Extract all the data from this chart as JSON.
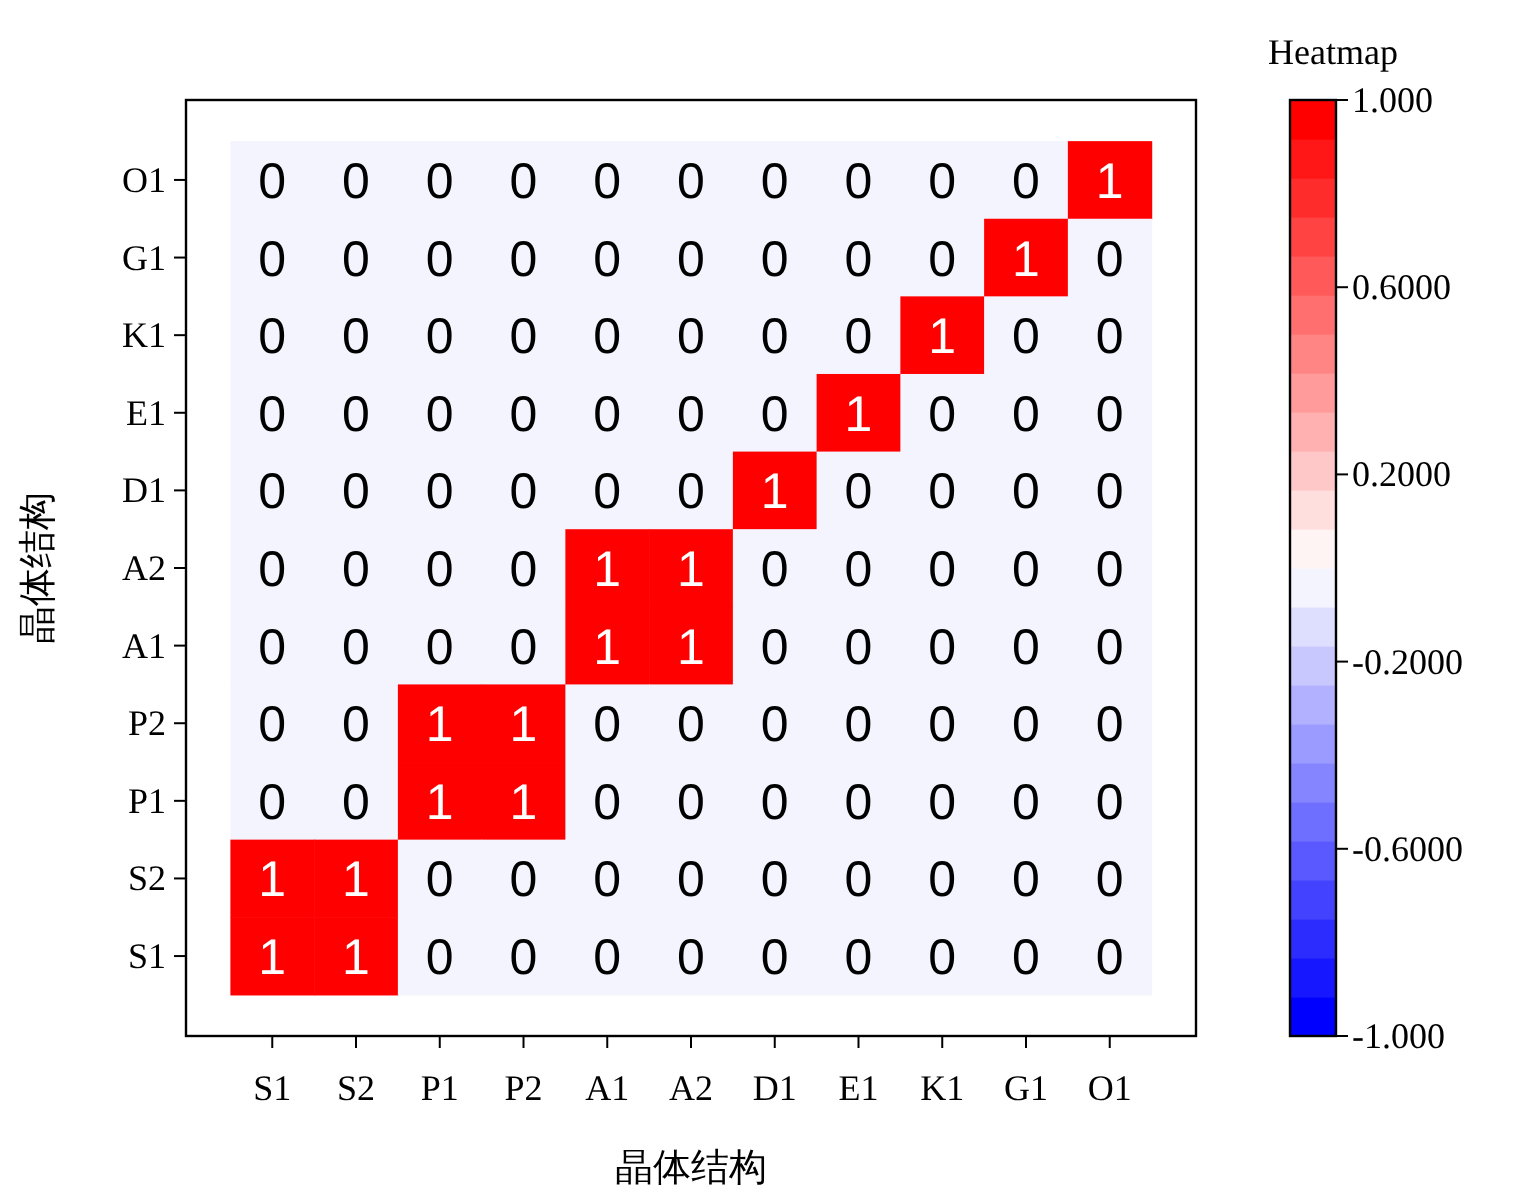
{
  "chart_data": {
    "type": "heatmap",
    "xlabel": "晶体结构",
    "ylabel": "晶体结构",
    "clabel": "Heatmap",
    "categories": [
      "S1",
      "S2",
      "P1",
      "P2",
      "A1",
      "A2",
      "D1",
      "E1",
      "K1",
      "G1",
      "O1"
    ],
    "y_categories": [
      "O1",
      "G1",
      "K1",
      "E1",
      "D1",
      "A2",
      "A1",
      "P2",
      "P1",
      "S2",
      "S1"
    ],
    "cells": [
      [
        0,
        0,
        0,
        0,
        0,
        0,
        0,
        0,
        0,
        0,
        1
      ],
      [
        0,
        0,
        0,
        0,
        0,
        0,
        0,
        0,
        0,
        1,
        0
      ],
      [
        0,
        0,
        0,
        0,
        0,
        0,
        0,
        0,
        1,
        0,
        0
      ],
      [
        0,
        0,
        0,
        0,
        0,
        0,
        0,
        1,
        0,
        0,
        0
      ],
      [
        0,
        0,
        0,
        0,
        0,
        0,
        1,
        0,
        0,
        0,
        0
      ],
      [
        0,
        0,
        0,
        0,
        1,
        1,
        0,
        0,
        0,
        0,
        0
      ],
      [
        0,
        0,
        0,
        0,
        1,
        1,
        0,
        0,
        0,
        0,
        0
      ],
      [
        0,
        0,
        1,
        1,
        0,
        0,
        0,
        0,
        0,
        0,
        0
      ],
      [
        0,
        0,
        1,
        1,
        0,
        0,
        0,
        0,
        0,
        0,
        0
      ],
      [
        1,
        1,
        0,
        0,
        0,
        0,
        0,
        0,
        0,
        0,
        0
      ],
      [
        1,
        1,
        0,
        0,
        0,
        0,
        0,
        0,
        0,
        0,
        0
      ]
    ],
    "clim": [
      -1,
      1
    ],
    "cticks": [
      {
        "value": 1,
        "label": "1.000"
      },
      {
        "value": 0.6,
        "label": "0.6000"
      },
      {
        "value": 0.2,
        "label": "0.2000"
      },
      {
        "value": -0.2,
        "label": "-0.2000"
      },
      {
        "value": -0.6,
        "label": "-0.6000"
      },
      {
        "value": -1,
        "label": "-1.000"
      }
    ],
    "data_labels": true
  }
}
